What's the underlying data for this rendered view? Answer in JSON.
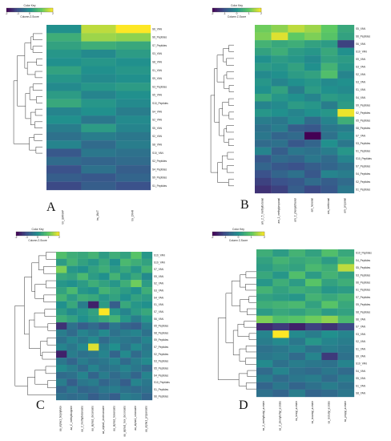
{
  "figure": {
    "color_key_title": "Color Key",
    "color_key_axis_label": "Column Z-Score",
    "color_key_ticks": [
      "-2",
      "-1",
      "0",
      "1",
      "2"
    ],
    "colormap": [
      "#440154",
      "#3b528b",
      "#21908d",
      "#5dc963",
      "#fde725"
    ]
  },
  "chart_data": [
    {
      "type": "heatmap",
      "panel_label": "A",
      "columns": [
        "tm_dsRNAP",
        "tm_1N4T",
        "tm_ZR4R"
      ],
      "rows": [
        "S6_YAN",
        "S6_Peptides",
        "S7_Peptides",
        "S3_YAN",
        "S8_YAN",
        "S1_YAN",
        "S9_YAN",
        "S3_Peptides",
        "S5_YAN",
        "S10_Peptides",
        "S4_YAN",
        "S2_YAN",
        "S5_YAN",
        "S2_YAN",
        "S8_YAN",
        "S10_YAN",
        "S2_Peptides",
        "S4_Peptides",
        "S9_Peptides",
        "S1_Peptides"
      ],
      "values": [
        [
          0.0,
          1.6,
          2.0
        ],
        [
          0.5,
          1.4,
          1.3
        ],
        [
          0.3,
          0.5,
          0.4
        ],
        [
          0.1,
          -0.1,
          0.2
        ],
        [
          0.0,
          0.1,
          0.0
        ],
        [
          0.3,
          0.0,
          0.1
        ],
        [
          0.1,
          -0.1,
          0.0
        ],
        [
          -0.1,
          0.1,
          0.2
        ],
        [
          0.2,
          -0.2,
          0.0
        ],
        [
          0.4,
          0.1,
          -0.1
        ],
        [
          -0.2,
          0.0,
          -0.3
        ],
        [
          0.0,
          -0.4,
          -0.1
        ],
        [
          -0.3,
          0.2,
          -0.2
        ],
        [
          -0.5,
          -0.3,
          -0.4
        ],
        [
          -0.2,
          -0.6,
          -0.3
        ],
        [
          -0.9,
          -0.4,
          -0.5
        ],
        [
          -0.6,
          -0.7,
          -0.6
        ],
        [
          -1.0,
          -0.5,
          -0.8
        ],
        [
          -0.8,
          -0.9,
          -0.7
        ],
        [
          -1.1,
          -0.8,
          -1.0
        ]
      ]
    },
    {
      "type": "heatmap",
      "panel_label": "B",
      "columns": [
        "am_2_5_methylbutanal",
        "am_2_methylpropanal",
        "am_2_phenylethanol",
        "am_hexanal",
        "am_methional",
        "am_propanal"
      ],
      "rows": [
        "S5_YAN",
        "S6_Peptides",
        "S6_YAN",
        "S10_YAN",
        "S9_YAN",
        "S3_YAN",
        "S2_YAN",
        "S3_YAN",
        "S1_YAN",
        "S4_YAN",
        "S9_Peptides",
        "S2_Peptides",
        "S5_Peptides",
        "S8_Peptides",
        "S7_YAN",
        "S3_Peptides",
        "S1_Peptides",
        "S10_Peptides",
        "S7_Peptides",
        "S4_Peptides",
        "S2_Peptides",
        "S1_Peptides"
      ],
      "values": [
        [
          1.1,
          1.3,
          1.6,
          1.4,
          1.0,
          0.4
        ],
        [
          1.2,
          1.8,
          1.0,
          1.2,
          0.9,
          0.3
        ],
        [
          0.6,
          0.4,
          0.5,
          0.3,
          0.2,
          -1.2
        ],
        [
          0.3,
          0.5,
          0.2,
          0.1,
          0.4,
          0.0
        ],
        [
          0.0,
          0.2,
          0.1,
          -0.1,
          0.3,
          0.2
        ],
        [
          0.2,
          0.1,
          0.3,
          0.0,
          0.6,
          0.1
        ],
        [
          -0.1,
          0.0,
          0.2,
          0.3,
          0.8,
          -0.2
        ],
        [
          0.1,
          -0.2,
          0.0,
          0.1,
          -0.1,
          0.0
        ],
        [
          0.0,
          0.3,
          -0.3,
          0.2,
          0.0,
          -0.1
        ],
        [
          0.4,
          0.1,
          0.0,
          -0.2,
          0.2,
          0.1
        ],
        [
          -0.2,
          -0.1,
          0.2,
          0.1,
          -0.3,
          0.2
        ],
        [
          0.1,
          0.0,
          -0.2,
          0.0,
          0.1,
          1.9
        ],
        [
          -0.3,
          -0.4,
          -0.1,
          -0.6,
          -0.2,
          0.5
        ],
        [
          -0.5,
          -0.3,
          -0.8,
          -0.9,
          -0.4,
          -0.3
        ],
        [
          -0.4,
          -0.7,
          -0.6,
          -2.0,
          -0.5,
          -0.1
        ],
        [
          -0.6,
          -0.5,
          -0.9,
          -0.7,
          0.0,
          -0.4
        ],
        [
          -0.2,
          -0.8,
          -0.4,
          -0.5,
          -0.3,
          0.1
        ],
        [
          -0.9,
          -0.6,
          -0.7,
          -0.4,
          -0.6,
          -0.2
        ],
        [
          -0.7,
          -0.9,
          -1.0,
          -0.8,
          -0.7,
          -0.5
        ],
        [
          -1.0,
          -0.7,
          -0.5,
          -0.9,
          -0.2,
          -0.3
        ],
        [
          -1.2,
          -1.0,
          -0.9,
          -0.6,
          -0.8,
          -0.6
        ],
        [
          -1.4,
          -1.2,
          -0.8,
          -1.1,
          -0.9,
          -0.4
        ]
      ]
    },
    {
      "type": "heatmap",
      "panel_label": "C",
      "columns": [
        "aa_alpha1_butyrylalex",
        "aa_C_methylbutyrate",
        "aa_2_methylbutanoate",
        "aa_alpha1_decanoate",
        "aa_alpha1_dodecanoate",
        "aa_alpha1_hexanoate",
        "aa_alpha1_hex_decenoate",
        "aa_alpha1_octanoate",
        "aa_alpha1_propanoate"
      ],
      "rows": [
        "S10_YAN",
        "S10_YAN",
        "S7_YAN",
        "S9_YAN",
        "S2_YAN",
        "S3_YAN",
        "S4_YAN",
        "S1_YAN",
        "S7_YAN",
        "S6_YAN",
        "S5_Peptides",
        "S8_Peptides",
        "S9_Peptides",
        "S7_Peptides",
        "S2_Peptides",
        "S3_Peptides",
        "S5_Peptides",
        "S4_Peptides",
        "S10_Peptides",
        "S1_Peptides",
        "S6_Peptides"
      ],
      "values": [
        [
          0.8,
          0.5,
          0.4,
          0.6,
          0.2,
          0.5,
          0.3,
          0.9,
          0.1
        ],
        [
          0.2,
          0.6,
          0.3,
          0.1,
          0.4,
          0.0,
          0.7,
          0.5,
          0.3
        ],
        [
          1.2,
          0.1,
          0.0,
          0.3,
          0.5,
          0.2,
          0.4,
          0.1,
          0.6
        ],
        [
          0.4,
          0.3,
          0.7,
          0.2,
          0.0,
          0.6,
          0.1,
          0.4,
          -0.1
        ],
        [
          0.1,
          0.0,
          0.2,
          0.5,
          0.3,
          0.1,
          0.5,
          1.1,
          0.2
        ],
        [
          0.3,
          0.7,
          0.1,
          0.0,
          0.6,
          0.4,
          0.2,
          0.0,
          0.5
        ],
        [
          0.6,
          0.2,
          0.5,
          0.4,
          0.1,
          0.3,
          0.0,
          0.3,
          0.2
        ],
        [
          0.0,
          0.4,
          -0.3,
          -1.6,
          0.2,
          -0.8,
          0.4,
          0.1,
          0.0
        ],
        [
          0.2,
          -0.1,
          0.1,
          0.3,
          2.2,
          0.1,
          -0.2,
          0.2,
          0.4
        ],
        [
          0.5,
          0.3,
          0.0,
          0.2,
          0.4,
          0.6,
          0.1,
          -0.3,
          0.1
        ],
        [
          -1.4,
          -0.5,
          -0.8,
          -0.6,
          -0.9,
          -0.4,
          -0.7,
          -0.8,
          -0.3
        ],
        [
          -0.3,
          -0.6,
          -0.2,
          -0.4,
          -0.1,
          -0.5,
          -0.3,
          -0.2,
          -0.5
        ],
        [
          -0.5,
          -0.2,
          -0.4,
          -0.1,
          -0.6,
          -0.3,
          -0.4,
          -0.5,
          -0.2
        ],
        [
          -0.2,
          -0.4,
          -0.1,
          1.8,
          -0.3,
          0.0,
          -0.5,
          -0.1,
          -0.4
        ],
        [
          -1.6,
          -0.3,
          -0.5,
          -0.4,
          -0.2,
          -0.7,
          -0.1,
          -0.6,
          -0.3
        ],
        [
          -0.4,
          -0.7,
          -0.3,
          -0.5,
          -0.4,
          -0.2,
          -0.6,
          -0.3,
          -0.1
        ],
        [
          -0.1,
          -0.3,
          -0.6,
          -0.2,
          -0.5,
          -0.4,
          -0.2,
          -0.4,
          -0.6
        ],
        [
          -0.6,
          -0.5,
          -0.2,
          -0.7,
          -0.3,
          -0.6,
          -0.4,
          -0.7,
          -0.2
        ],
        [
          -0.3,
          -0.8,
          -0.4,
          -0.3,
          -0.7,
          -0.5,
          -0.8,
          -0.2,
          -0.4
        ],
        [
          -0.7,
          -0.4,
          -0.7,
          -0.6,
          -0.4,
          -0.3,
          -0.5,
          -0.6,
          -0.5
        ],
        [
          -0.5,
          -0.6,
          -0.5,
          -0.8,
          -0.6,
          -0.8,
          -0.3,
          -0.4,
          -0.7
        ]
      ]
    },
    {
      "type": "heatmap",
      "panel_label": "D",
      "columns": [
        "ea_2_methylbutyl_acetate",
        "ea_2_phenylethyl_acetate",
        "ea_hexyl_acetate",
        "ea_isoamyl_acetate",
        "ea_isobutyl_acetate",
        "ea_propyl_acetate"
      ],
      "rows": [
        "S10_Peptides",
        "S4_Peptides",
        "S5_Peptides",
        "S3_Peptides",
        "S6_Peptides",
        "S1_Peptides",
        "S7_Peptides",
        "S9_Peptides",
        "S8_Peptides",
        "S6_YAN",
        "S7_YAN",
        "S3_YAN",
        "S2_YAN",
        "S1_YAN",
        "S9_YAN",
        "S10_YAN",
        "S4_YAN",
        "S5_YAN",
        "S1_YAN",
        "S8_YAN"
      ],
      "values": [
        [
          0.5,
          0.2,
          0.6,
          0.3,
          0.8,
          0.4
        ],
        [
          0.3,
          0.6,
          0.4,
          0.5,
          0.2,
          0.7
        ],
        [
          0.2,
          0.4,
          0.3,
          0.7,
          0.5,
          1.6
        ],
        [
          0.4,
          0.1,
          0.8,
          0.2,
          0.6,
          0.3
        ],
        [
          0.1,
          0.5,
          0.2,
          0.9,
          0.3,
          0.5
        ],
        [
          0.6,
          0.3,
          0.5,
          0.4,
          0.1,
          0.2
        ],
        [
          0.3,
          0.2,
          0.1,
          0.6,
          0.4,
          0.6
        ],
        [
          0.5,
          0.6,
          0.7,
          0.3,
          0.9,
          0.4
        ],
        [
          0.2,
          0.4,
          0.3,
          0.5,
          0.2,
          0.3
        ],
        [
          1.2,
          0.8,
          0.9,
          1.1,
          1.3,
          0.7
        ],
        [
          -1.5,
          -1.3,
          -1.6,
          -1.2,
          -1.4,
          -1.1
        ],
        [
          -0.2,
          2.2,
          -0.1,
          -0.3,
          0.0,
          -0.2
        ],
        [
          -0.3,
          -0.1,
          -0.4,
          0.1,
          -0.2,
          -0.3
        ],
        [
          -0.5,
          -0.4,
          -0.2,
          -0.5,
          -0.3,
          -0.4
        ],
        [
          -0.4,
          -0.3,
          -0.6,
          -0.2,
          -1.3,
          -0.5
        ],
        [
          -0.1,
          -0.5,
          -0.3,
          -0.4,
          -0.5,
          -0.2
        ],
        [
          -0.6,
          -0.2,
          -0.5,
          -0.6,
          -0.4,
          -0.6
        ],
        [
          -0.3,
          -0.6,
          -0.4,
          -0.3,
          -0.6,
          -0.3
        ],
        [
          -0.7,
          -0.4,
          -0.7,
          -0.5,
          -0.3,
          -0.5
        ],
        [
          -0.5,
          -0.7,
          -0.3,
          -0.7,
          -0.6,
          -0.4
        ]
      ]
    }
  ]
}
